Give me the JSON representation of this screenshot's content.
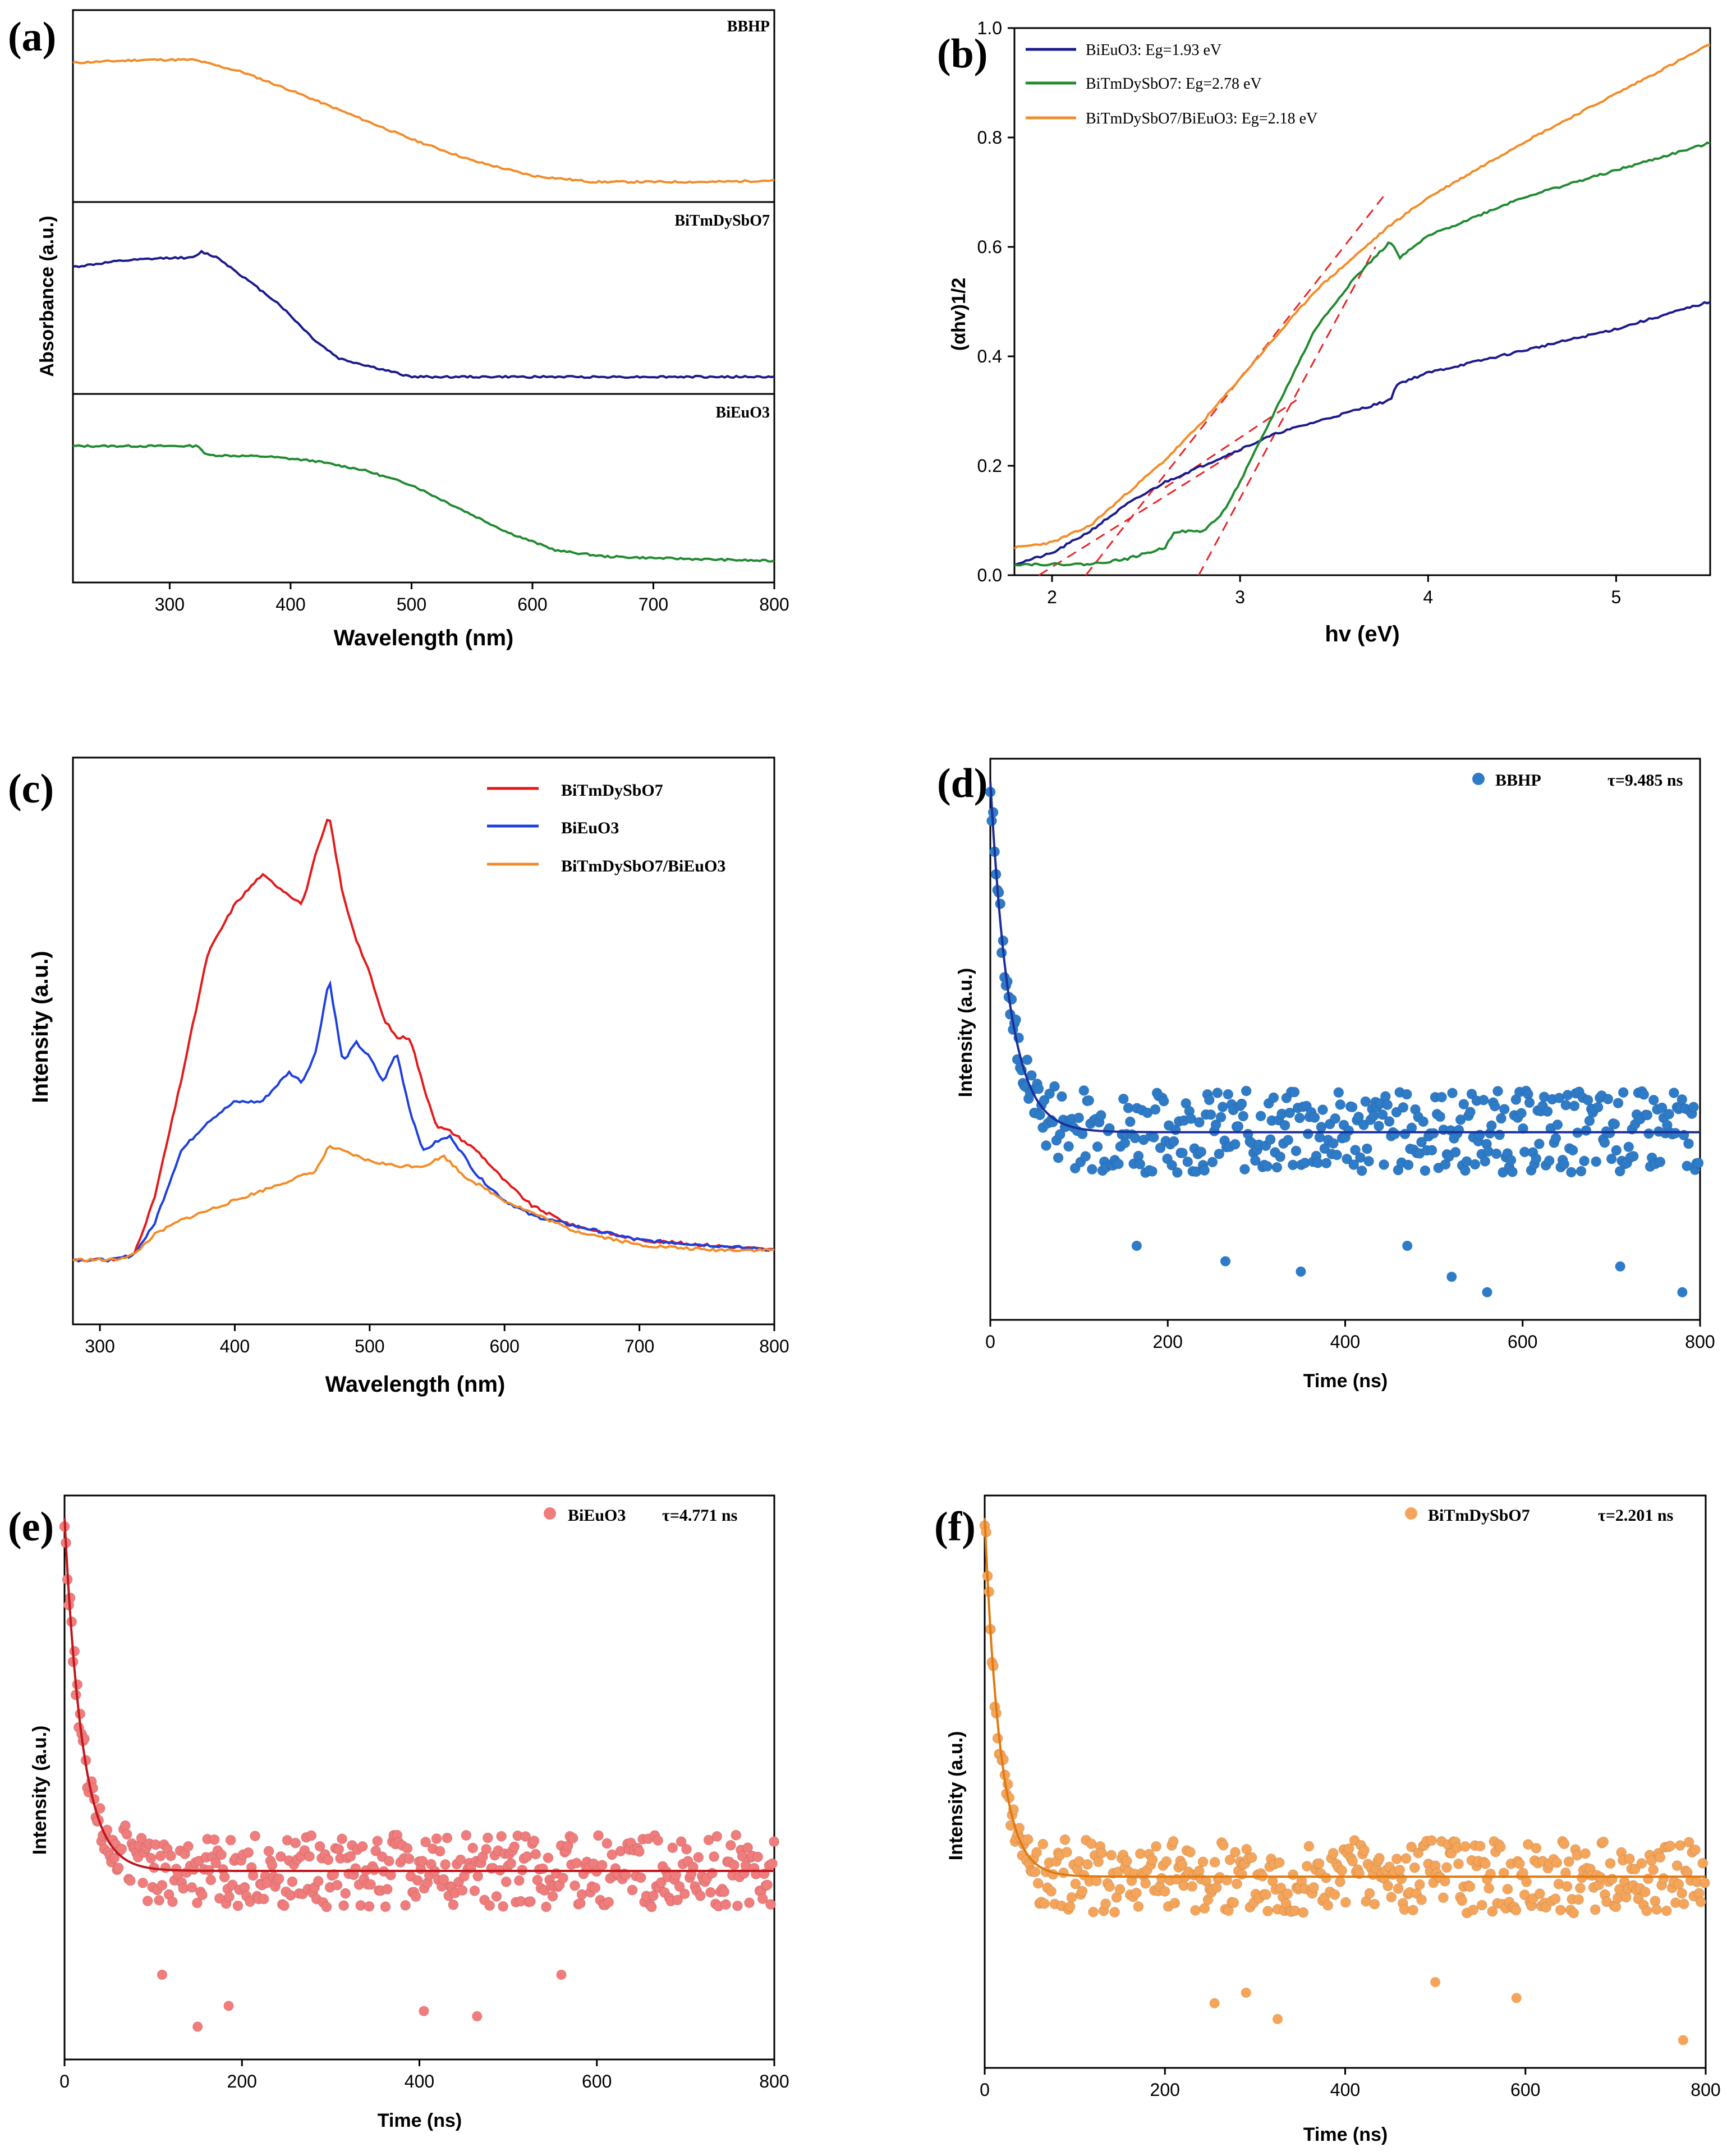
{
  "chart_data": [
    {
      "panel": "(a)",
      "type": "line",
      "xlabel": "Wavelength (nm)",
      "ylabel": "Absorbance (a.u.)",
      "xlim": [
        220,
        800
      ],
      "xticks": [
        300,
        400,
        500,
        600,
        700,
        800
      ],
      "series": [
        {
          "name": "BBHP",
          "color": "#F28C28",
          "x": [
            220,
            280,
            320,
            360,
            400,
            450,
            500,
            550,
            600,
            650,
            700,
            750,
            800
          ],
          "y": [
            0.82,
            0.84,
            0.84,
            0.76,
            0.64,
            0.48,
            0.32,
            0.18,
            0.08,
            0.04,
            0.04,
            0.04,
            0.05
          ]
        },
        {
          "name": "BiTmDySbO7",
          "color": "#1A1A8C",
          "x": [
            220,
            260,
            300,
            320,
            326,
            340,
            360,
            390,
            420,
            440,
            460,
            480,
            500,
            600,
            700,
            800
          ],
          "y": [
            0.74,
            0.78,
            0.8,
            0.8,
            0.84,
            0.8,
            0.68,
            0.5,
            0.26,
            0.14,
            0.1,
            0.06,
            0.02,
            0.02,
            0.02,
            0.02
          ]
        },
        {
          "name": "BiEuO3",
          "color": "#218A30",
          "x": [
            220,
            300,
            324,
            330,
            380,
            420,
            460,
            500,
            540,
            580,
            620,
            660,
            700,
            750,
            800
          ],
          "y": [
            0.82,
            0.82,
            0.82,
            0.76,
            0.75,
            0.72,
            0.66,
            0.56,
            0.4,
            0.24,
            0.12,
            0.08,
            0.07,
            0.06,
            0.05
          ]
        }
      ]
    },
    {
      "panel": "(b)",
      "type": "line",
      "xlabel": "hv (eV)",
      "ylabel": "(αhv)1/2",
      "xlim": [
        1.8,
        5.5
      ],
      "ylim": [
        0,
        1.0
      ],
      "xticks": [
        2,
        3,
        4,
        5
      ],
      "yticks": [
        0.0,
        0.2,
        0.4,
        0.6,
        0.8,
        1.0
      ],
      "series": [
        {
          "name": "BiEuO3: Eg=1.93 eV",
          "color": "#1A1A8C",
          "x": [
            1.8,
            2.0,
            2.2,
            2.4,
            2.6,
            2.8,
            3.0,
            3.2,
            3.4,
            3.6,
            3.8,
            3.82,
            3.84,
            4.0,
            4.5,
            5.0,
            5.5
          ],
          "y": [
            0.02,
            0.04,
            0.08,
            0.13,
            0.17,
            0.2,
            0.23,
            0.26,
            0.28,
            0.3,
            0.32,
            0.34,
            0.35,
            0.37,
            0.41,
            0.45,
            0.5
          ]
        },
        {
          "name": "BiTmDySbO7: Eg=2.78 eV",
          "color": "#218A30",
          "x": [
            1.8,
            2.0,
            2.2,
            2.4,
            2.6,
            2.65,
            2.8,
            2.9,
            3.0,
            3.2,
            3.4,
            3.6,
            3.8,
            3.85,
            4.0,
            4.5,
            5.0,
            5.5
          ],
          "y": [
            0.02,
            0.02,
            0.02,
            0.03,
            0.05,
            0.08,
            0.08,
            0.11,
            0.17,
            0.31,
            0.45,
            0.54,
            0.61,
            0.58,
            0.62,
            0.69,
            0.74,
            0.79
          ]
        },
        {
          "name": "BiTmDySbO7/BiEuO3: Eg=2.18 eV",
          "color": "#F28C28",
          "x": [
            1.8,
            2.0,
            2.2,
            2.4,
            2.6,
            2.8,
            3.0,
            3.2,
            3.4,
            3.6,
            3.8,
            4.0,
            4.5,
            5.0,
            5.5
          ],
          "y": [
            0.05,
            0.06,
            0.09,
            0.15,
            0.21,
            0.28,
            0.36,
            0.44,
            0.52,
            0.58,
            0.64,
            0.69,
            0.79,
            0.88,
            0.97
          ]
        }
      ],
      "fit_lines": [
        {
          "x": [
            2.18,
            3.78
          ],
          "y": [
            0.0,
            0.7
          ]
        },
        {
          "x": [
            2.78,
            3.72
          ],
          "y": [
            0.0,
            0.6
          ]
        },
        {
          "x": [
            1.93,
            3.0
          ],
          "y": [
            0.0,
            0.23
          ]
        },
        {
          "x": [
            2.6,
            3.3
          ],
          "y": [
            0.16,
            0.32
          ]
        }
      ]
    },
    {
      "panel": "(c)",
      "type": "line",
      "xlabel": "Wavelength (nm)",
      "ylabel": "Intensity (a.u.)",
      "xlim": [
        280,
        800
      ],
      "xticks": [
        300,
        400,
        500,
        600,
        700,
        800
      ],
      "series": [
        {
          "name": "BiTmDySbO7",
          "color": "#E31A1C",
          "x": [
            280,
            310,
            325,
            340,
            360,
            380,
            400,
            420,
            440,
            450,
            460,
            470,
            480,
            490,
            500,
            510,
            520,
            530,
            540,
            550,
            560,
            570,
            580,
            600,
            620,
            650,
            700,
            750,
            800
          ],
          "y": [
            0.0,
            0.0,
            0.01,
            0.12,
            0.36,
            0.62,
            0.72,
            0.78,
            0.74,
            0.72,
            0.82,
            0.9,
            0.74,
            0.65,
            0.58,
            0.49,
            0.45,
            0.45,
            0.35,
            0.27,
            0.26,
            0.24,
            0.22,
            0.16,
            0.11,
            0.07,
            0.04,
            0.03,
            0.02
          ]
        },
        {
          "name": "BiEuO3",
          "color": "#1D3FE0",
          "x": [
            280,
            310,
            325,
            340,
            360,
            380,
            400,
            420,
            440,
            450,
            460,
            470,
            480,
            490,
            500,
            510,
            520,
            530,
            540,
            550,
            560,
            570,
            580,
            600,
            620,
            650,
            700,
            750,
            800
          ],
          "y": [
            0.0,
            0.0,
            0.01,
            0.07,
            0.22,
            0.28,
            0.32,
            0.32,
            0.38,
            0.36,
            0.42,
            0.57,
            0.4,
            0.44,
            0.41,
            0.36,
            0.42,
            0.3,
            0.22,
            0.24,
            0.25,
            0.21,
            0.17,
            0.12,
            0.09,
            0.07,
            0.04,
            0.03,
            0.02
          ]
        },
        {
          "name": "BiTmDySbO7/BiEuO3",
          "color": "#F28C28",
          "x": [
            280,
            310,
            325,
            340,
            360,
            400,
            440,
            460,
            470,
            480,
            500,
            520,
            540,
            555,
            570,
            600,
            650,
            700,
            750,
            800
          ],
          "y": [
            0.0,
            0.0,
            0.01,
            0.05,
            0.08,
            0.12,
            0.16,
            0.18,
            0.23,
            0.22,
            0.2,
            0.19,
            0.19,
            0.21,
            0.17,
            0.12,
            0.06,
            0.03,
            0.02,
            0.02
          ]
        }
      ]
    },
    {
      "panel": "(d)",
      "type": "scatter",
      "xlabel": "Time (ns)",
      "ylabel": "Intensity (a.u.)",
      "xlim": [
        0,
        800
      ],
      "xticks": [
        0,
        200,
        400,
        600,
        800
      ],
      "legend": "BBHP  τ=9.485 ns",
      "sample": "BBHP",
      "tau_label": "τ=9.485 ns",
      "tau_ns": 9.485,
      "color": "#2E7BC8",
      "fit_color": "#1A2F9C",
      "fit_decay_ns": 22,
      "baseline": 0.32,
      "peak": 1.0,
      "noise": 0.08,
      "outliers": [
        [
          165,
          0.1
        ],
        [
          265,
          0.07
        ],
        [
          350,
          0.05
        ],
        [
          470,
          0.1
        ],
        [
          560,
          0.01
        ],
        [
          780,
          0.01
        ],
        [
          710,
          0.06
        ],
        [
          520,
          0.04
        ]
      ]
    },
    {
      "panel": "(e)",
      "type": "scatter",
      "xlabel": "Time (ns)",
      "ylabel": "Intensity (a.u.)",
      "xlim": [
        0,
        800
      ],
      "xticks": [
        0,
        200,
        400,
        600,
        800
      ],
      "legend": "BiEuO3  τ=4.771 ns",
      "sample": "BiEuO3",
      "tau_label": "τ=4.771 ns",
      "tau_ns": 4.771,
      "color": "#F07C7C",
      "fit_color": "#C0161C",
      "fit_decay_ns": 20,
      "baseline": 0.32,
      "peak": 1.0,
      "noise": 0.07,
      "outliers": [
        [
          110,
          0.12
        ],
        [
          150,
          0.02
        ],
        [
          185,
          0.06
        ],
        [
          405,
          0.05
        ],
        [
          465,
          0.04
        ],
        [
          560,
          0.12
        ]
      ]
    },
    {
      "panel": "(f)",
      "type": "scatter",
      "xlabel": "Time (ns)",
      "ylabel": "Intensity (a.u.)",
      "xlim": [
        0,
        800
      ],
      "xticks": [
        0,
        200,
        400,
        600,
        800
      ],
      "legend": "BiTmDySbO7  τ=2.201 ns",
      "sample": "BiTmDySbO7",
      "tau_label": "τ=2.201 ns",
      "tau_ns": 2.201,
      "color": "#F5A55A",
      "fit_color": "#E07A10",
      "fit_decay_ns": 17,
      "baseline": 0.32,
      "peak": 1.0,
      "noise": 0.07,
      "outliers": [
        [
          255,
          0.08
        ],
        [
          290,
          0.1
        ],
        [
          325,
          0.05
        ],
        [
          500,
          0.12
        ],
        [
          775,
          0.01
        ],
        [
          590,
          0.09
        ]
      ]
    }
  ]
}
